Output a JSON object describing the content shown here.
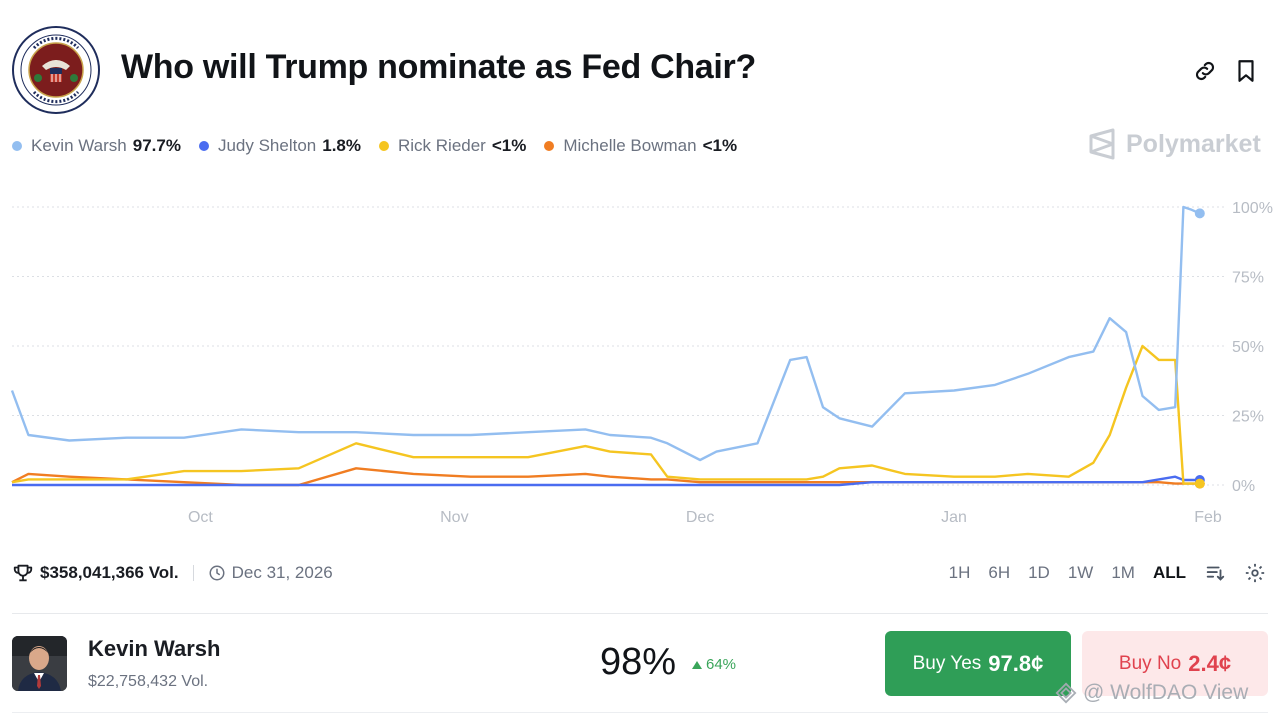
{
  "header": {
    "title": "Who will Trump nominate as Fed Chair?"
  },
  "brand": {
    "name": "Polymarket"
  },
  "legend": [
    {
      "name": "Kevin Warsh",
      "value": "97.7%",
      "color": "#93bef0"
    },
    {
      "name": "Judy Shelton",
      "value": "1.8%",
      "color": "#4a6cf0"
    },
    {
      "name": "Rick Rieder",
      "value": "<1%",
      "color": "#f5c521"
    },
    {
      "name": "Michelle Bowman",
      "value": "<1%",
      "color": "#f07d22"
    }
  ],
  "chart_data": {
    "type": "line",
    "title": "",
    "xlabel": "",
    "ylabel": "",
    "x_ticks": [
      "Oct",
      "Nov",
      "Dec",
      "Jan",
      "Feb"
    ],
    "y_ticks": [
      "100%",
      "75%",
      "50%",
      "25%",
      "0%"
    ],
    "ylim": [
      0,
      100
    ],
    "grid": true,
    "x_dates": [
      "Sep 8",
      "Sep 10",
      "Sep 15",
      "Sep 22",
      "Sep 29",
      "Oct 6",
      "Oct 13",
      "Oct 20",
      "Oct 27",
      "Nov 3",
      "Nov 10",
      "Nov 17",
      "Nov 20",
      "Nov 25",
      "Nov 27",
      "Dec 1",
      "Dec 3",
      "Dec 8",
      "Dec 12",
      "Dec 14",
      "Dec 16",
      "Dec 18",
      "Dec 22",
      "Dec 26",
      "Jan 1",
      "Jan 6",
      "Jan 10",
      "Jan 15",
      "Jan 18",
      "Jan 20",
      "Jan 22",
      "Jan 24",
      "Jan 26",
      "Jan 28",
      "Jan 29",
      "Jan 30",
      "Jan 31"
    ],
    "series": [
      {
        "name": "Kevin Warsh",
        "color": "#93bef0",
        "values": [
          34,
          18,
          16,
          17,
          17,
          20,
          19,
          19,
          18,
          18,
          19,
          20,
          18,
          17,
          15,
          9,
          12,
          15,
          45,
          46,
          28,
          24,
          21,
          33,
          34,
          36,
          40,
          46,
          48,
          60,
          55,
          32,
          27,
          28,
          100,
          99,
          97.7
        ]
      },
      {
        "name": "Judy Shelton",
        "color": "#4a6cf0",
        "values": [
          0,
          0,
          0,
          0,
          0,
          0,
          0,
          0,
          0,
          0,
          0,
          0,
          0,
          0,
          0,
          0,
          0,
          0,
          0,
          0,
          0,
          0,
          1,
          1,
          1,
          1,
          1,
          1,
          1,
          1,
          1,
          1,
          2,
          3,
          1.8,
          1.8,
          1.8
        ]
      },
      {
        "name": "Rick Rieder",
        "color": "#f5c521",
        "values": [
          1,
          2,
          2,
          2,
          5,
          5,
          6,
          15,
          10,
          10,
          10,
          14,
          12,
          11,
          3,
          2,
          2,
          2,
          2,
          2,
          3,
          6,
          7,
          4,
          3,
          3,
          4,
          3,
          8,
          18,
          35,
          50,
          45,
          45,
          0.5,
          0.5,
          0.5
        ]
      },
      {
        "name": "Michelle Bowman",
        "color": "#f07d22",
        "values": [
          1,
          4,
          3,
          2,
          1,
          0,
          0,
          6,
          4,
          3,
          3,
          4,
          3,
          2,
          2,
          1,
          1,
          1,
          1,
          1,
          1,
          1,
          1,
          1,
          1,
          1,
          1,
          1,
          1,
          1,
          1,
          1,
          1,
          0.5,
          0.5,
          0.5,
          0.5
        ]
      }
    ]
  },
  "stats": {
    "volume": "$358,041,366 Vol.",
    "end_date": "Dec 31, 2026"
  },
  "ranges": [
    "1H",
    "6H",
    "1D",
    "1W",
    "1M",
    "ALL"
  ],
  "active_range": "ALL",
  "outcome": {
    "name": "Kevin Warsh",
    "volume": "$22,758,432 Vol.",
    "probability": "98%",
    "change": "64%",
    "buy_yes_label": "Buy Yes",
    "buy_yes_price": "97.8¢",
    "buy_no_label": "Buy No",
    "buy_no_price": "2.4¢"
  },
  "watermark": "@ WolfDAO View",
  "colors": {
    "up": "#3aa55a",
    "yes_button": "#2f9e57",
    "no_button_bg": "#fde8e9",
    "no_button_text": "#e0424e"
  }
}
